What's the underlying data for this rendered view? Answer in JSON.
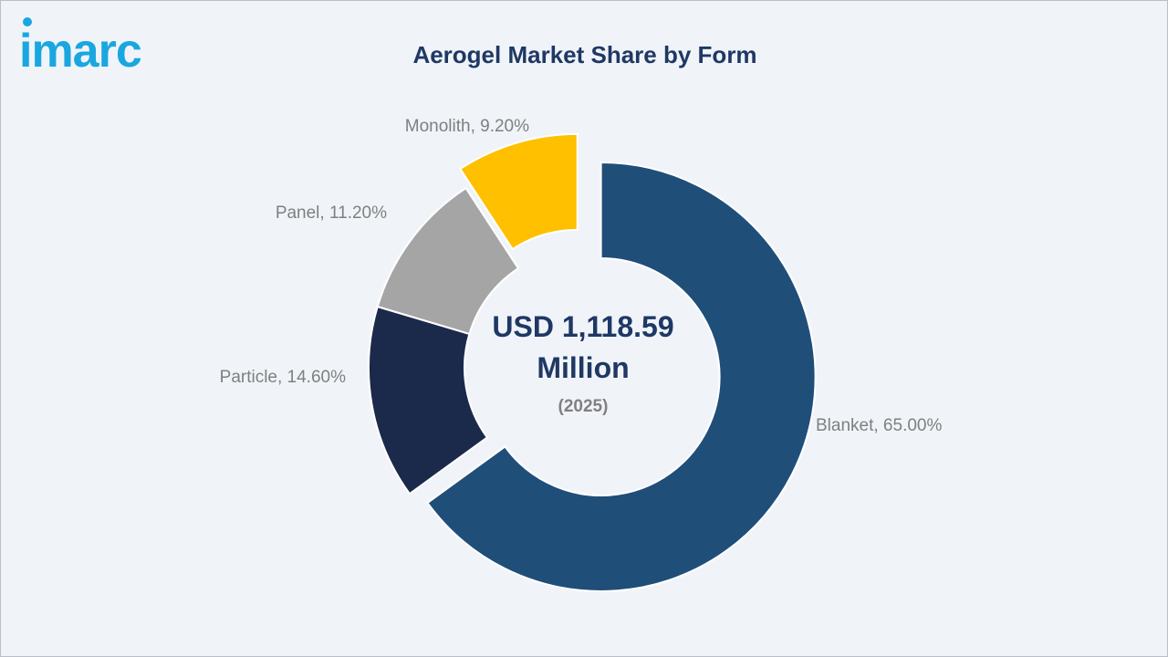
{
  "brand": {
    "logo_text": "imarc",
    "logo_color": "#1aa7e0"
  },
  "chart_data": {
    "type": "pie",
    "variant": "donut",
    "title": "Aerogel Market Share by Form",
    "unit": "%",
    "center": {
      "value_line1": "USD 1,118.59",
      "value_line2": "Million",
      "year": "(2025)"
    },
    "slices": [
      {
        "name": "Blanket",
        "value": 65.0,
        "label": "Blanket, 65.00%",
        "color": "#1f4e79",
        "exploded": true
      },
      {
        "name": "Particle",
        "value": 14.6,
        "label": "Particle, 14.60%",
        "color": "#1b2a4a",
        "exploded": false
      },
      {
        "name": "Panel",
        "value": 11.2,
        "label": "Panel, 11.20%",
        "color": "#a5a5a5",
        "exploded": false
      },
      {
        "name": "Monolith",
        "value": 9.2,
        "label": "Monolith, 9.20%",
        "color": "#ffc000",
        "exploded": true
      }
    ],
    "label_color": "#7f7f7f",
    "start": "12 o'clock",
    "direction": "clockwise"
  }
}
